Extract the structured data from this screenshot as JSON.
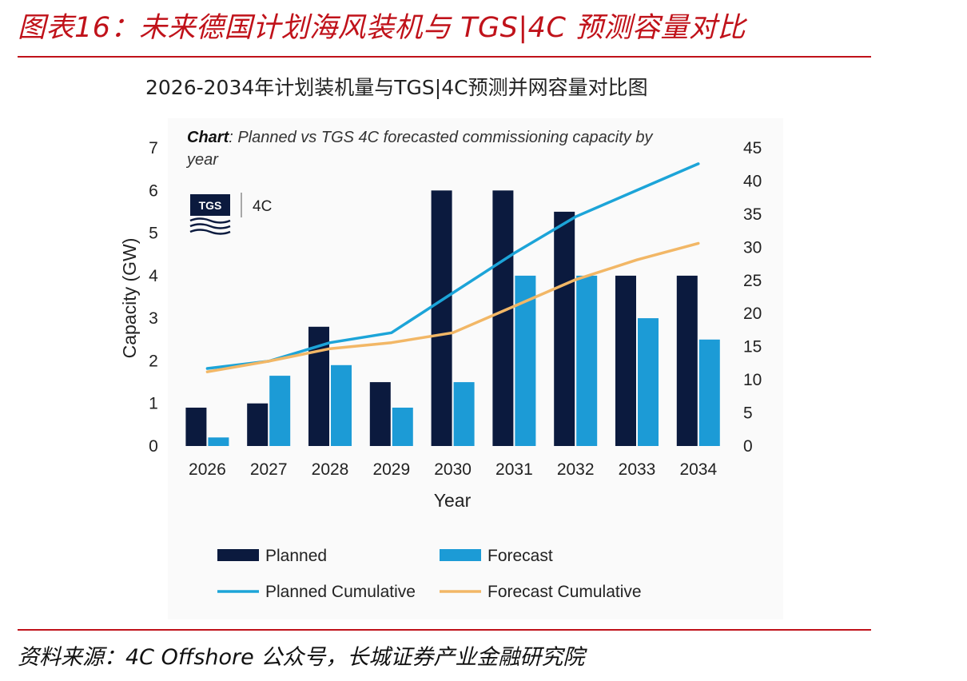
{
  "figure": {
    "title": "图表16：未来德国计划海风装机与 TGS|4C 预测容量对比",
    "source": "资料来源：4C Offshore 公众号，长城证券产业金融研究院"
  },
  "chart_title": "2026-2034年计划装机量与TGS|4C预测并网容量对比图",
  "inner": {
    "caption_bold": "Chart",
    "caption_line1": ": Planned vs TGS 4C forecasted commissioning capacity by",
    "caption_line2": "year",
    "logo_text": "TGS",
    "logo_suffix": "4C"
  },
  "colors": {
    "title_red": "#c0121a",
    "planned": "#0b1a3e",
    "forecast": "#1c9bd6",
    "planned_cumulative": "#1ca4d8",
    "forecast_cumulative": "#f2b766"
  },
  "chart_data": {
    "type": "bar",
    "categories": [
      "2026",
      "2027",
      "2028",
      "2029",
      "2030",
      "2031",
      "2032",
      "2033",
      "2034"
    ],
    "xlabel": "Year",
    "ylabel": "Capacity (GW)",
    "ylim": [
      0,
      7
    ],
    "y_ticks": [
      "0",
      "1",
      "2",
      "3",
      "4",
      "5",
      "6",
      "7"
    ],
    "y2lim": [
      0,
      45
    ],
    "y2_ticks": [
      "0",
      "5",
      "10",
      "15",
      "20",
      "25",
      "30",
      "35",
      "40",
      "45"
    ],
    "grid": false,
    "legend_position": "bottom",
    "series": [
      {
        "name": "Planned",
        "kind": "bar",
        "axis": "left",
        "values": [
          0.9,
          1.0,
          2.8,
          1.5,
          6.0,
          6.0,
          5.5,
          4.0,
          4.0
        ]
      },
      {
        "name": "Forecast",
        "kind": "bar",
        "axis": "left",
        "values": [
          0.2,
          1.65,
          1.9,
          0.9,
          1.5,
          4.0,
          4.0,
          3.0,
          2.5
        ]
      },
      {
        "name": "Planned Cumulative",
        "kind": "line",
        "axis": "right",
        "values": [
          11.7,
          12.8,
          15.6,
          17.1,
          23.1,
          29.1,
          34.6,
          38.6,
          42.6
        ]
      },
      {
        "name": "Forecast Cumulative",
        "kind": "line",
        "axis": "right",
        "values": [
          11.2,
          12.8,
          14.7,
          15.6,
          17.1,
          21.1,
          25.1,
          28.1,
          30.6
        ]
      }
    ]
  }
}
